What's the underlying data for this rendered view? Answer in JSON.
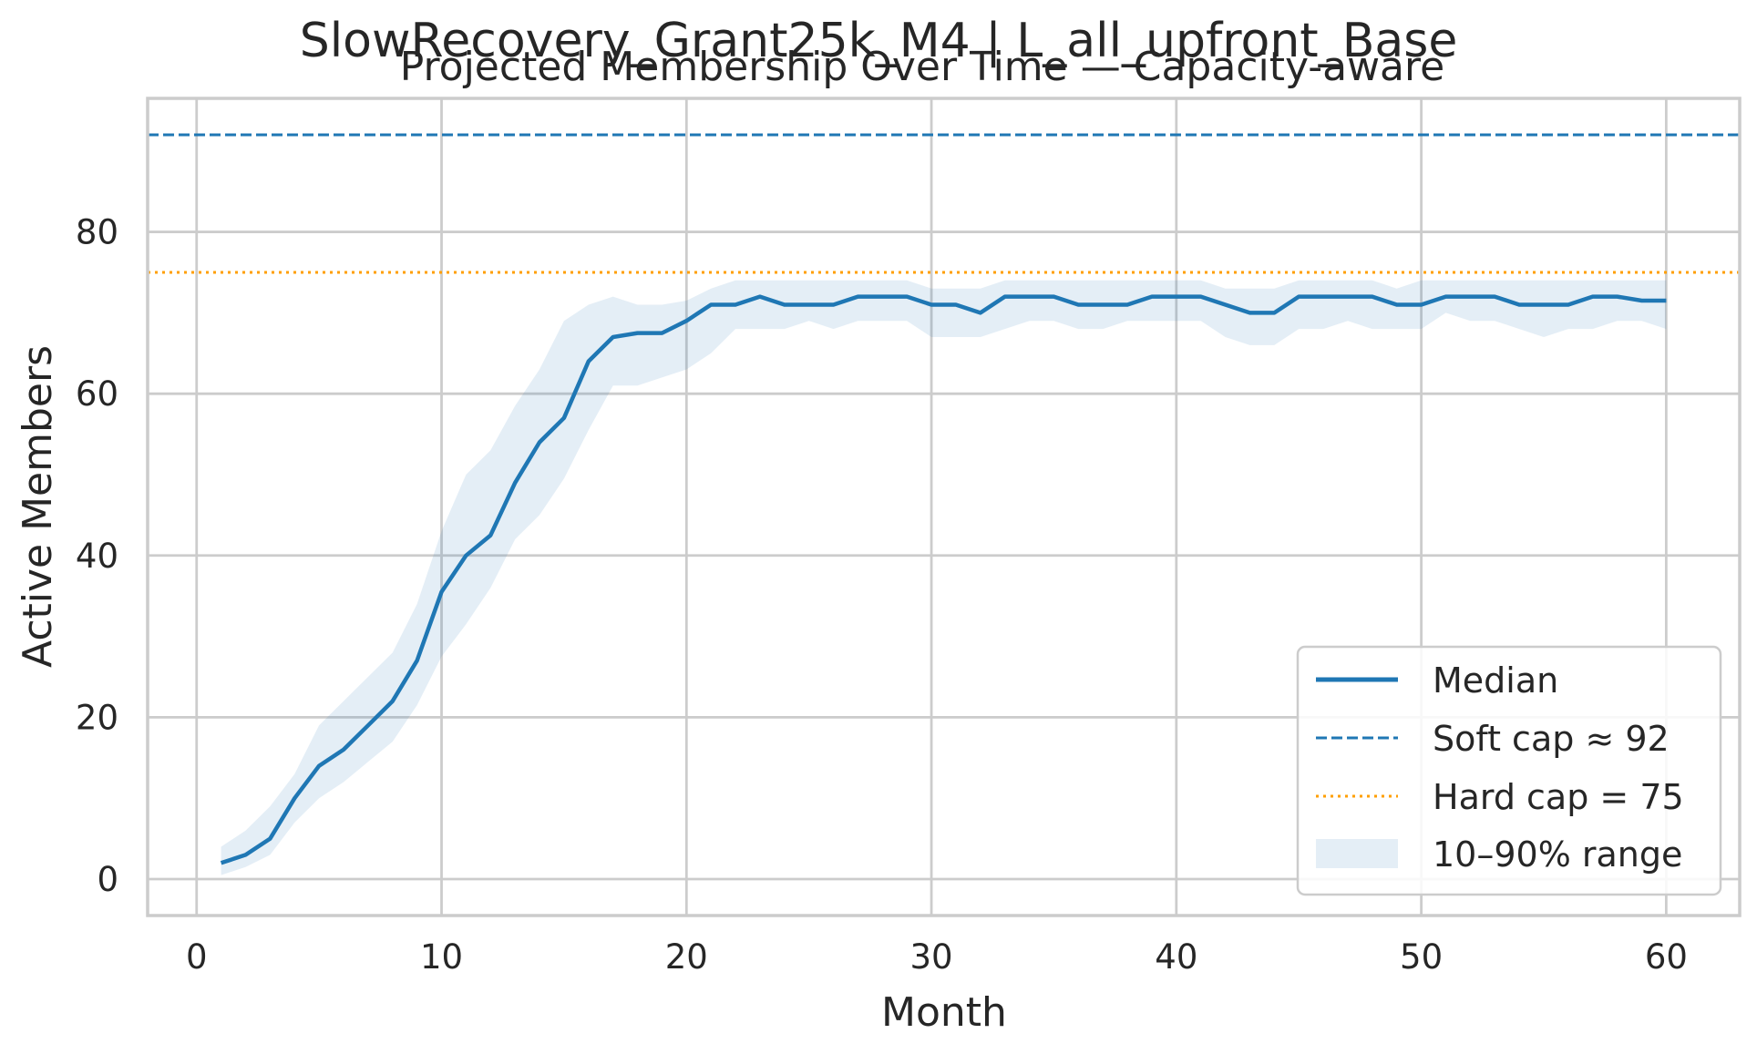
{
  "chart_data": {
    "type": "line",
    "suptitle": "SlowRecovery_Grant25k_M4 | L_all_upfront_Base",
    "title": "Projected Membership Over Time — Capacity-aware",
    "xlabel": "Month",
    "ylabel": "Active Members",
    "xlim": [
      -2,
      63
    ],
    "ylim": [
      -4.5,
      96.5
    ],
    "xticks": [
      0,
      10,
      20,
      30,
      40,
      50,
      60
    ],
    "yticks": [
      0,
      20,
      40,
      60,
      80
    ],
    "grid": true,
    "legend_position": "lower-right",
    "x": [
      1,
      2,
      3,
      4,
      5,
      6,
      7,
      8,
      9,
      10,
      11,
      12,
      13,
      14,
      15,
      16,
      17,
      18,
      19,
      20,
      21,
      22,
      23,
      24,
      25,
      26,
      27,
      28,
      29,
      30,
      31,
      32,
      33,
      34,
      35,
      36,
      37,
      38,
      39,
      40,
      41,
      42,
      43,
      44,
      45,
      46,
      47,
      48,
      49,
      50,
      51,
      52,
      53,
      54,
      55,
      56,
      57,
      58,
      59,
      60
    ],
    "series": [
      {
        "name": "Median",
        "style": "solid",
        "color": "#1f77b4",
        "values": [
          2,
          3,
          5,
          10,
          14,
          16,
          19,
          22,
          27,
          35.5,
          40,
          42.5,
          49,
          54,
          57,
          64,
          67,
          67.5,
          67.5,
          69,
          71,
          71,
          72,
          71,
          71,
          71,
          72,
          72,
          72,
          71,
          71,
          70,
          72,
          72,
          72,
          71,
          71,
          71,
          72,
          72,
          72,
          71,
          70,
          70,
          72,
          72,
          72,
          72,
          71,
          71,
          72,
          72,
          72,
          71,
          71,
          71,
          72,
          72,
          71.5,
          71.5
        ]
      },
      {
        "name": "Soft cap ≈ 92",
        "style": "dashed",
        "color": "#1f77b4",
        "value": 92
      },
      {
        "name": "Hard cap = 75",
        "style": "dotted",
        "color": "#ff9f00",
        "value": 75
      },
      {
        "name": "10–90% range",
        "style": "band",
        "color": "#1f77b4",
        "lower": [
          0.5,
          1.5,
          3,
          7,
          10,
          12,
          14.5,
          17,
          21.5,
          27.5,
          31.5,
          36,
          42,
          45,
          49.5,
          55.5,
          61,
          61,
          62,
          63,
          65,
          68,
          68,
          68,
          69,
          68,
          69,
          69,
          69,
          67,
          67,
          67,
          68,
          69,
          69,
          68,
          68,
          69,
          69,
          69,
          69,
          67,
          66,
          66,
          68,
          68,
          69,
          68,
          68,
          68,
          70,
          69,
          69,
          68,
          67,
          68,
          68,
          69,
          69,
          68
        ],
        "upper": [
          4,
          6,
          9,
          13,
          19,
          22,
          25,
          28,
          34,
          43,
          50,
          53,
          58.5,
          63,
          69,
          71,
          72,
          71,
          71,
          71.5,
          73,
          74,
          74,
          74,
          74,
          74,
          74,
          74,
          74,
          73,
          73,
          73,
          74,
          74,
          74,
          74,
          74,
          74,
          74,
          74,
          74,
          73,
          73,
          73,
          74,
          74,
          74,
          74,
          73,
          74,
          74,
          74,
          74,
          74,
          74,
          74,
          74,
          74,
          74,
          74
        ]
      }
    ]
  }
}
